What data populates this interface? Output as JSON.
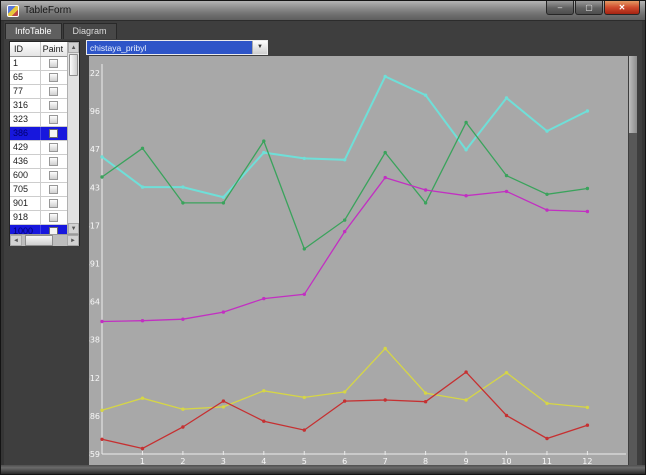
{
  "window": {
    "title": "TableForm",
    "minimize_icon": "–",
    "maximize_icon": "▢",
    "close_icon": "✕"
  },
  "tabs": [
    {
      "label": "InfoTable",
      "selected": true
    },
    {
      "label": "Diagram",
      "selected": false
    }
  ],
  "combobox": {
    "value": "chistaya_pribyl"
  },
  "icons": {
    "up": "▲",
    "down": "▼",
    "left": "◄",
    "right": "►",
    "dropdown": "▼"
  },
  "table": {
    "columns": {
      "id": "ID",
      "paint": "Paint"
    },
    "rows": [
      {
        "id": "1",
        "selected": false,
        "checked": false
      },
      {
        "id": "65",
        "selected": false,
        "checked": false
      },
      {
        "id": "77",
        "selected": false,
        "checked": false
      },
      {
        "id": "316",
        "selected": false,
        "checked": false
      },
      {
        "id": "323",
        "selected": false,
        "checked": false
      },
      {
        "id": "386",
        "selected": true,
        "checked": true
      },
      {
        "id": "429",
        "selected": false,
        "checked": false
      },
      {
        "id": "436",
        "selected": false,
        "checked": false
      },
      {
        "id": "600",
        "selected": false,
        "checked": false
      },
      {
        "id": "705",
        "selected": false,
        "checked": false
      },
      {
        "id": "901",
        "selected": false,
        "checked": false
      },
      {
        "id": "918",
        "selected": false,
        "checked": false
      },
      {
        "id": "1000",
        "selected": true,
        "checked": true
      }
    ]
  },
  "chart_data": {
    "type": "line",
    "title": "chistaya_pribyl",
    "x": [
      0,
      1,
      2,
      3,
      4,
      5,
      6,
      7,
      8,
      9,
      10,
      11,
      12
    ],
    "x_tick_labels": [
      "1",
      "2",
      "3",
      "4",
      "5",
      "6",
      "7",
      "8",
      "9",
      "10",
      "11",
      "12"
    ],
    "y_tick_labels": [
      "17,122",
      "15,796",
      "14,47",
      "13,143",
      "11,817",
      "10,491",
      "9,164",
      "7,838",
      "6,512",
      "5,186",
      "3,859"
    ],
    "ylim": [
      3.859,
      17.122
    ],
    "grid": false,
    "legend": "none",
    "plot_bg": "#a8a8a8",
    "axis_color": "#ebebeb",
    "label_color": "#f8f8f8",
    "series": [
      {
        "name": "cyan",
        "color": "#6fdfd8",
        "width": 2,
        "values": [
          14.2,
          13.15,
          13.15,
          12.8,
          14.35,
          14.15,
          14.1,
          17.0,
          16.35,
          14.45,
          16.25,
          15.1,
          15.8
        ]
      },
      {
        "name": "green",
        "color": "#3aa35c",
        "width": 1.3,
        "values": [
          13.5,
          14.5,
          12.6,
          12.6,
          14.75,
          11.0,
          12.0,
          14.35,
          12.6,
          15.4,
          13.55,
          12.9,
          13.1
        ]
      },
      {
        "name": "magenta",
        "color": "#c22fc2",
        "width": 1.3,
        "values": [
          8.47,
          8.5,
          8.55,
          8.8,
          9.27,
          9.42,
          11.6,
          13.48,
          13.05,
          12.85,
          13.0,
          12.35,
          12.3
        ]
      },
      {
        "name": "yellow",
        "color": "#d6d645",
        "width": 1.3,
        "values": [
          5.38,
          5.8,
          5.42,
          5.5,
          6.06,
          5.83,
          6.02,
          7.53,
          5.98,
          5.74,
          6.69,
          5.62,
          5.48
        ]
      },
      {
        "name": "red",
        "color": "#c63031",
        "width": 1.3,
        "values": [
          4.37,
          4.05,
          4.8,
          5.7,
          5.0,
          4.69,
          5.7,
          5.74,
          5.68,
          6.71,
          5.2,
          4.4,
          4.86
        ]
      }
    ]
  }
}
